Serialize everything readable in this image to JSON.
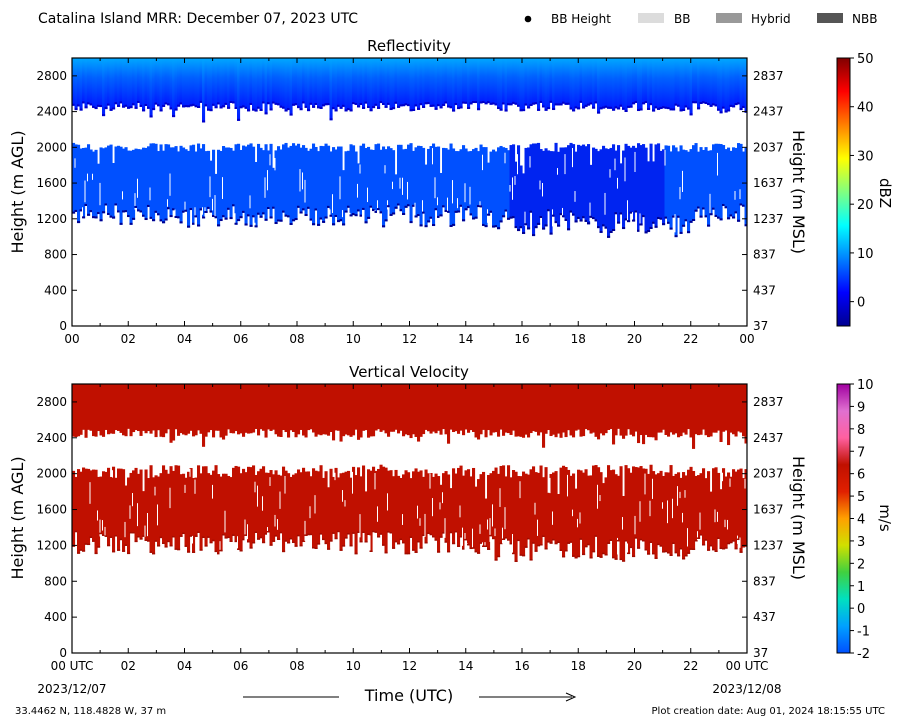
{
  "header": {
    "title": "Catalina Island MRR:  December 07, 2023 UTC",
    "legend": [
      {
        "key": "bb_height",
        "label": "BB Height",
        "marker": "dot",
        "color": "#000000"
      },
      {
        "key": "bb",
        "label": "BB",
        "marker": "rect",
        "color": "#dcdcdc"
      },
      {
        "key": "hybrid",
        "label": "Hybrid",
        "marker": "rect",
        "color": "#999999"
      },
      {
        "key": "nbb",
        "label": "NBB",
        "marker": "rect",
        "color": "#555555"
      }
    ]
  },
  "footer": {
    "location": "33.4462 N, 118.4828 W, 37 m",
    "creation": "Plot creation date: Aug 01, 2024 18:15:55 UTC",
    "xlabel": "Time (UTC)",
    "start_date": "2023/12/07",
    "end_date": "2023/12/08"
  },
  "chart_data": [
    {
      "type": "heatmap",
      "title": "Reflectivity",
      "ylabel": "Height (m AGL)",
      "ylabel_right": "Height (m MSL)",
      "ylim": [
        0,
        3000
      ],
      "yticks": [
        0,
        400,
        800,
        1200,
        1600,
        2000,
        2400,
        2800
      ],
      "yticks_right": [
        "37",
        "437",
        "837",
        "1237",
        "1637",
        "2037",
        "2437",
        "2837"
      ],
      "xlim": [
        0,
        24
      ],
      "xticks": [
        "00",
        "02",
        "04",
        "06",
        "08",
        "10",
        "12",
        "14",
        "16",
        "18",
        "20",
        "22",
        "00"
      ],
      "colorbar": {
        "label": "dBZ",
        "range": [
          -5,
          50
        ],
        "ticks": [
          "0",
          "10",
          "20",
          "30",
          "40",
          "50"
        ],
        "tick_values": [
          0,
          10,
          20,
          30,
          40,
          50
        ],
        "colors": [
          "#00008f",
          "#0000ff",
          "#0080ff",
          "#00ffff",
          "#80ff80",
          "#ffff00",
          "#ff8000",
          "#ff0000",
          "#800000"
        ]
      },
      "layers": [
        {
          "name": "upper",
          "bottom_range": [
            2400,
            2500
          ],
          "top": 3000,
          "value_dbz": 3
        },
        {
          "name": "lower",
          "bottom_range": [
            1100,
            1350
          ],
          "top_range": [
            1950,
            2050
          ],
          "value_dbz": 1
        }
      ],
      "gaps": [
        [
          2500,
          2150
        ]
      ]
    },
    {
      "type": "heatmap",
      "title": "Vertical Velocity",
      "ylabel": "Height (m AGL)",
      "ylabel_right": "Height (m MSL)",
      "ylim": [
        0,
        3000
      ],
      "yticks": [
        0,
        400,
        800,
        1200,
        1600,
        2000,
        2400,
        2800
      ],
      "yticks_right": [
        "37",
        "437",
        "837",
        "1237",
        "1637",
        "2037",
        "2437",
        "2837"
      ],
      "xlim": [
        0,
        24
      ],
      "xticks": [
        "00 UTC",
        "02",
        "04",
        "06",
        "08",
        "10",
        "12",
        "14",
        "16",
        "18",
        "20",
        "22",
        "00 UTC"
      ],
      "colorbar": {
        "label": "m/s",
        "range": [
          -2,
          10
        ],
        "ticks": [
          "-2",
          "-1",
          "0",
          "1",
          "2",
          "3",
          "4",
          "5",
          "6",
          "7",
          "8",
          "9",
          "10"
        ],
        "tick_values": [
          -2,
          -1,
          0,
          1,
          2,
          3,
          4,
          5,
          6,
          7,
          8,
          9,
          10
        ],
        "colors": [
          "#0050ff",
          "#00a0ff",
          "#00e0c0",
          "#40d040",
          "#d0e000",
          "#ffa000",
          "#e02000",
          "#c01000",
          "#ff60a0",
          "#e070d0",
          "#a000a0"
        ]
      },
      "layers": [
        {
          "name": "upper",
          "bottom_range": [
            2400,
            2500
          ],
          "top": 3000,
          "value_ms": 6
        },
        {
          "name": "lower",
          "bottom_range": [
            1100,
            1350
          ],
          "top_range": [
            1950,
            2100
          ],
          "value_ms": 6
        }
      ]
    }
  ]
}
